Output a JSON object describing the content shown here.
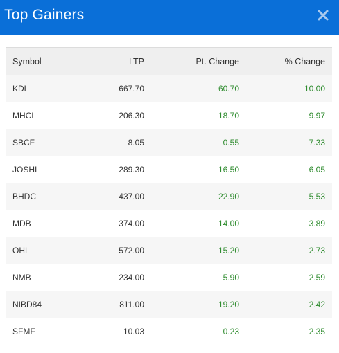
{
  "modal": {
    "title": "Top Gainers",
    "close_icon": "close-icon"
  },
  "table": {
    "headers": {
      "symbol": "Symbol",
      "ltp": "LTP",
      "pt_change": "Pt. Change",
      "pct_change": "% Change"
    },
    "rows": [
      {
        "symbol": "KDL",
        "ltp": "667.70",
        "pt_change": "60.70",
        "pct_change": "10.00"
      },
      {
        "symbol": "MHCL",
        "ltp": "206.30",
        "pt_change": "18.70",
        "pct_change": "9.97"
      },
      {
        "symbol": "SBCF",
        "ltp": "8.05",
        "pt_change": "0.55",
        "pct_change": "7.33"
      },
      {
        "symbol": "JOSHI",
        "ltp": "289.30",
        "pt_change": "16.50",
        "pct_change": "6.05"
      },
      {
        "symbol": "BHDC",
        "ltp": "437.00",
        "pt_change": "22.90",
        "pct_change": "5.53"
      },
      {
        "symbol": "MDB",
        "ltp": "374.00",
        "pt_change": "14.00",
        "pct_change": "3.89"
      },
      {
        "symbol": "OHL",
        "ltp": "572.00",
        "pt_change": "15.20",
        "pct_change": "2.73"
      },
      {
        "symbol": "NMB",
        "ltp": "234.00",
        "pt_change": "5.90",
        "pct_change": "2.59"
      },
      {
        "symbol": "NIBD84",
        "ltp": "811.00",
        "pt_change": "19.20",
        "pct_change": "2.42"
      },
      {
        "symbol": "SFMF",
        "ltp": "10.03",
        "pt_change": "0.23",
        "pct_change": "2.35"
      }
    ]
  },
  "colors": {
    "header_bg": "#0a6fd8",
    "gain_text": "#2e8b2e",
    "close_icon": "#a9c9ee"
  }
}
